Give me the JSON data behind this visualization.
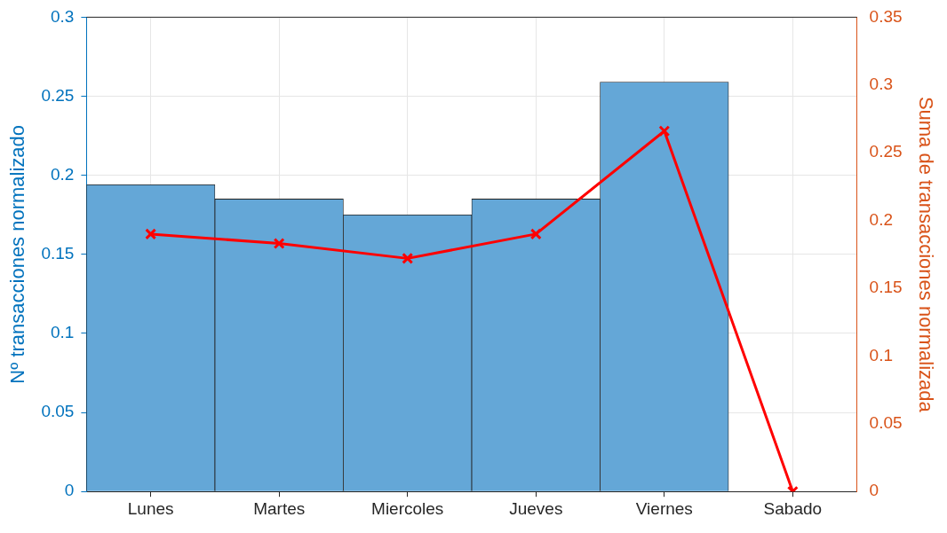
{
  "chart_data": {
    "type": "bar",
    "ylabel": "Nº transacciones normalizado",
    "y2label": "Suma de transacciones normalizada",
    "categories": [
      "Lunes",
      "Martes",
      "Miercoles",
      "Jueves",
      "Viernes",
      "Sabado"
    ],
    "series": [
      {
        "color": "#64a7d7",
        "values": [
          0.194,
          0.185,
          0.175,
          0.185,
          0.259,
          0
        ]
      },
      {
        "type": "line",
        "axis": "y2",
        "color": "#ff0000",
        "marker": "cross",
        "line_style": "solid",
        "values": [
          0.19,
          0.183,
          0.172,
          0.19,
          0.266,
          0
        ]
      }
    ],
    "ylim": [
      0,
      0.3
    ],
    "yticks": [
      0,
      0.05,
      0.1,
      0.15,
      0.2,
      0.25,
      0.3
    ],
    "y2lim": [
      0,
      0.35
    ],
    "y2ticks": [
      0,
      0.05,
      0.1,
      0.15,
      0.2,
      0.25,
      0.3,
      0.35
    ],
    "grid": true,
    "legend": false
  }
}
